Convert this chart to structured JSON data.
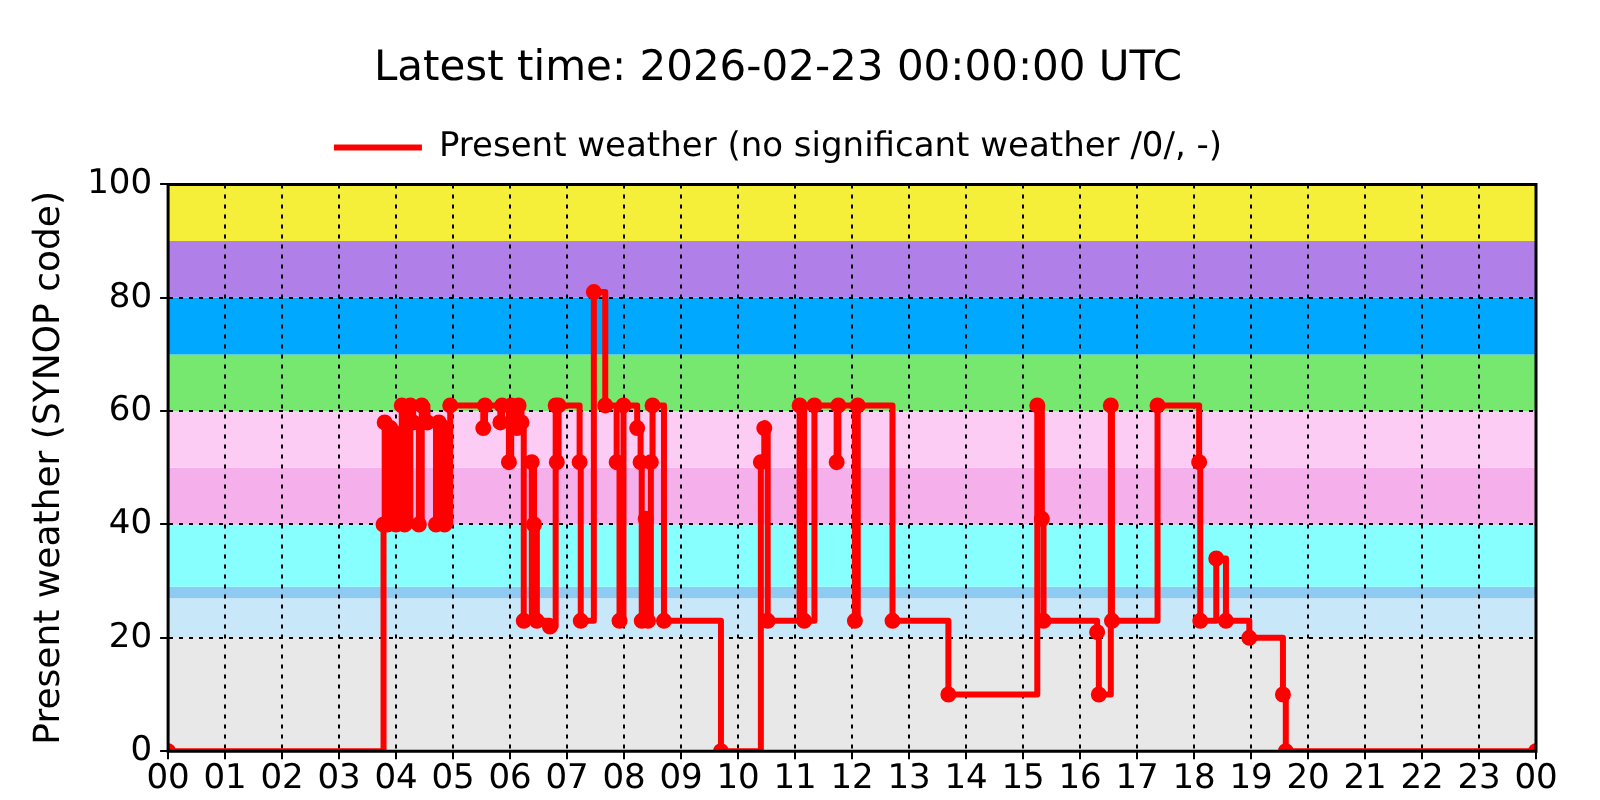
{
  "chart_data": {
    "type": "step",
    "title": "Latest time: 2026-02-23 00:00:00 UTC",
    "ylabel": "Present weather (SYNOP code)",
    "x": [
      0,
      3.78,
      3.8,
      3.85,
      3.9,
      4.0,
      4.1,
      4.15,
      4.25,
      4.3,
      4.4,
      4.45,
      4.55,
      4.7,
      4.75,
      4.85,
      4.95,
      5.53,
      5.56,
      5.83,
      5.86,
      5.98,
      6.02,
      6.12,
      6.15,
      6.2,
      6.24,
      6.38,
      6.42,
      6.47,
      6.7,
      6.8,
      6.82,
      6.85,
      7.22,
      7.24,
      7.47,
      7.67,
      7.87,
      7.92,
      7.99,
      8.23,
      8.29,
      8.31,
      8.38,
      8.42,
      8.47,
      8.5,
      8.7,
      9.7,
      10.4,
      10.46,
      10.52,
      11.08,
      11.16,
      11.34,
      11.73,
      11.76,
      12.05,
      12.1,
      12.71,
      13.69,
      15.25,
      15.33,
      15.36,
      16.3,
      16.33,
      16.54,
      16.56,
      17.36,
      18.09,
      18.11,
      18.39,
      18.56,
      18.97,
      19.56,
      19.61,
      24
    ],
    "series": [
      {
        "name": "Present weather (no significant weather /0/, -)",
        "color": "#ff0000",
        "values": [
          0,
          40,
          58,
          40,
          57,
          40,
          61,
          40,
          61,
          58,
          40,
          61,
          58,
          40,
          58,
          40,
          61,
          57,
          61,
          58,
          61,
          51,
          61,
          57,
          61,
          58,
          23,
          51,
          40,
          23,
          22,
          61,
          51,
          61,
          51,
          23,
          81,
          61,
          51,
          23,
          61,
          57,
          51,
          23,
          41,
          23,
          51,
          61,
          23,
          0,
          51,
          57,
          23,
          61,
          23,
          61,
          51,
          61,
          23,
          61,
          23,
          10,
          61,
          41,
          23,
          21,
          10,
          61,
          23,
          61,
          51,
          23,
          34,
          23,
          20,
          10,
          0,
          0
        ]
      }
    ],
    "xlim": [
      0,
      24
    ],
    "xticks": [
      {
        "value": 0,
        "label": "00"
      },
      {
        "value": 1,
        "label": "01"
      },
      {
        "value": 2,
        "label": "02"
      },
      {
        "value": 3,
        "label": "03"
      },
      {
        "value": 4,
        "label": "04"
      },
      {
        "value": 5,
        "label": "05"
      },
      {
        "value": 6,
        "label": "06"
      },
      {
        "value": 7,
        "label": "07"
      },
      {
        "value": 8,
        "label": "08"
      },
      {
        "value": 9,
        "label": "09"
      },
      {
        "value": 10,
        "label": "10"
      },
      {
        "value": 11,
        "label": "11"
      },
      {
        "value": 12,
        "label": "12"
      },
      {
        "value": 13,
        "label": "13"
      },
      {
        "value": 14,
        "label": "14"
      },
      {
        "value": 15,
        "label": "15"
      },
      {
        "value": 16,
        "label": "16"
      },
      {
        "value": 17,
        "label": "17"
      },
      {
        "value": 18,
        "label": "18"
      },
      {
        "value": 19,
        "label": "19"
      },
      {
        "value": 20,
        "label": "20"
      },
      {
        "value": 21,
        "label": "21"
      },
      {
        "value": 22,
        "label": "22"
      },
      {
        "value": 23,
        "label": "23"
      },
      {
        "value": 24,
        "label": "00"
      }
    ],
    "ylim": [
      0,
      100
    ],
    "yticks": [
      0,
      20,
      40,
      60,
      80,
      100
    ],
    "bands": [
      {
        "axis": "y",
        "from": 0,
        "to": 20,
        "color": "#e8e8e8"
      },
      {
        "axis": "y",
        "from": 20,
        "to": 27,
        "color": "#c8e8fa"
      },
      {
        "axis": "y",
        "from": 27,
        "to": 29,
        "color": "#8ecbf2"
      },
      {
        "axis": "y",
        "from": 29,
        "to": 40,
        "color": "#88ffff"
      },
      {
        "axis": "y",
        "from": 40,
        "to": 50,
        "color": "#f5b0ec"
      },
      {
        "axis": "y",
        "from": 50,
        "to": 60,
        "color": "#fdccf5"
      },
      {
        "axis": "y",
        "from": 60,
        "to": 70,
        "color": "#77e86f"
      },
      {
        "axis": "y",
        "from": 70,
        "to": 80,
        "color": "#00a8ff"
      },
      {
        "axis": "y",
        "from": 80,
        "to": 90,
        "color": "#b07fe8"
      },
      {
        "axis": "y",
        "from": 90,
        "to": 100,
        "color": "#f5ef3a"
      }
    ],
    "grid": true,
    "legend": "top",
    "marker": "circle",
    "line_style": "solid"
  }
}
